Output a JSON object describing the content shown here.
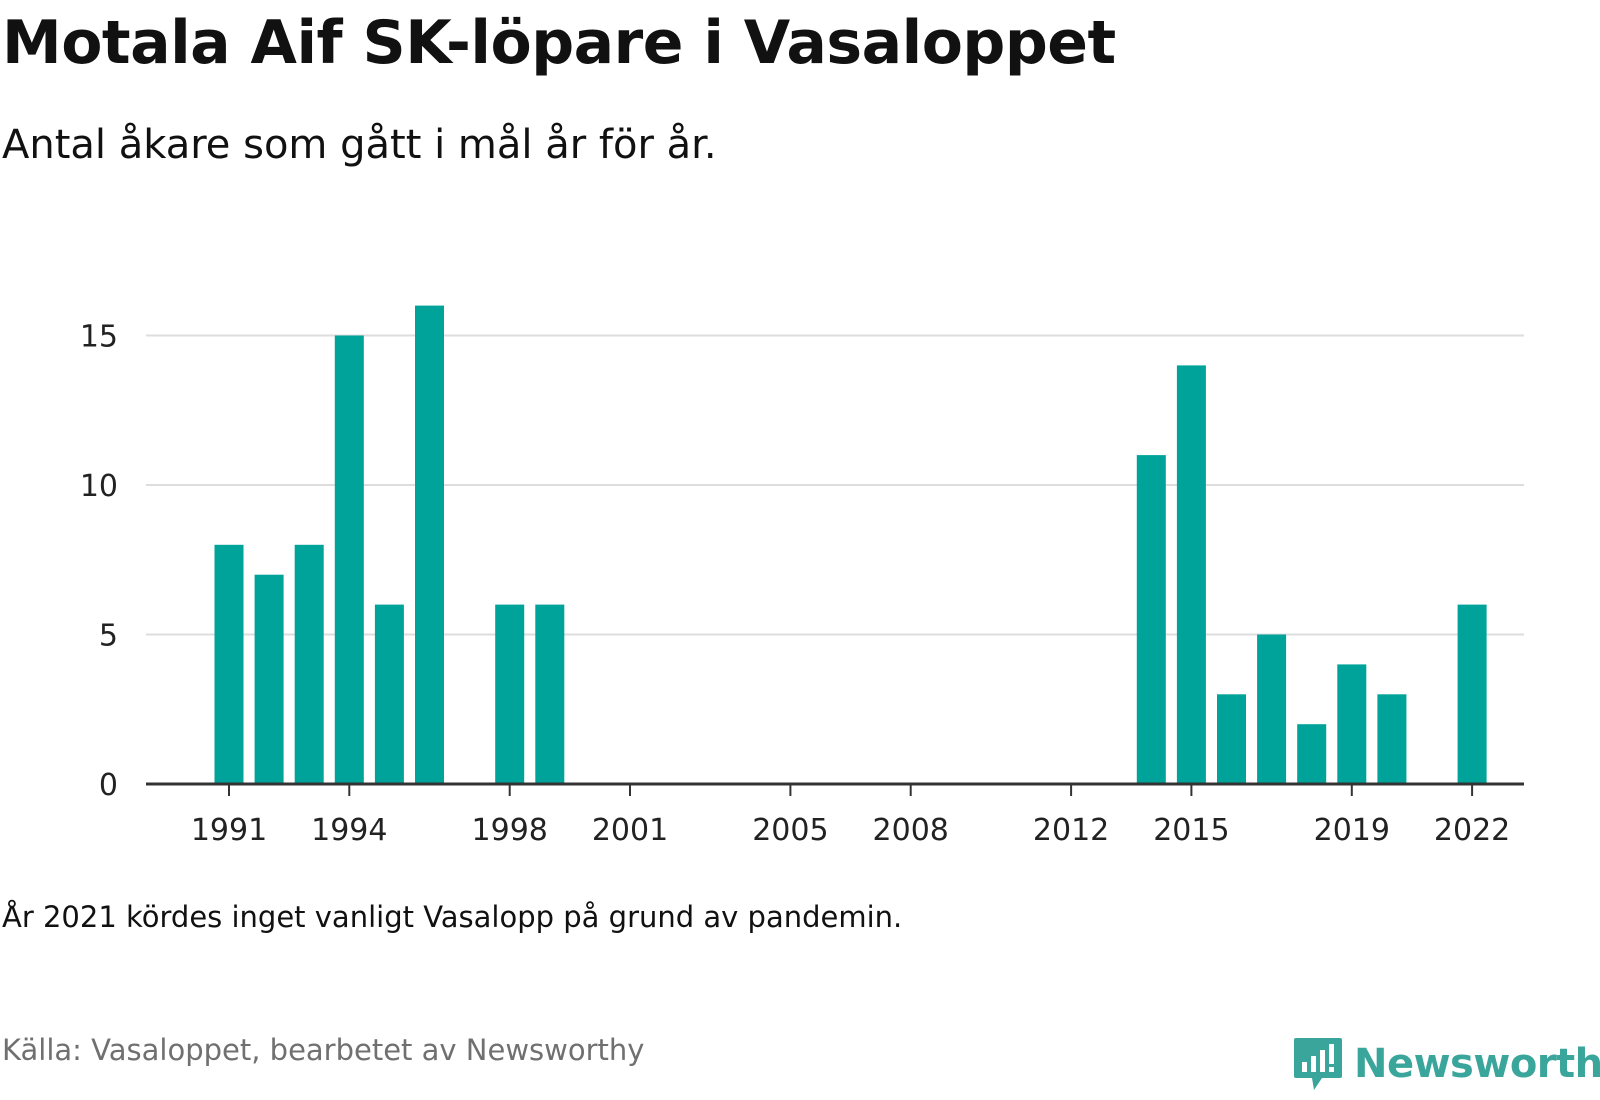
{
  "title": "Motala Aif SK-löpare i Vasaloppet",
  "subtitle": "Antal åkare som gått i mål år för år.",
  "note": "År 2021 kördes inget vanligt Vasalopp på grund av pandemin.",
  "source": "Källa: Vasaloppet, bearbetet av Newsworthy",
  "logo": {
    "text": "Newsworthy",
    "icon": "newsworthy-logo-icon",
    "color": "#3aa69b"
  },
  "chart_data": {
    "type": "bar",
    "x": [
      1991,
      1992,
      1993,
      1994,
      1995,
      1996,
      1997,
      1998,
      1999,
      2000,
      2001,
      2002,
      2003,
      2004,
      2005,
      2006,
      2007,
      2008,
      2009,
      2010,
      2011,
      2012,
      2013,
      2014,
      2015,
      2016,
      2017,
      2018,
      2019,
      2020,
      2021,
      2022
    ],
    "values": [
      8,
      7,
      8,
      15,
      6,
      16,
      0,
      6,
      6,
      0,
      0,
      0,
      0,
      0,
      0,
      0,
      0,
      0,
      0,
      0,
      0,
      0,
      0,
      11,
      14,
      3,
      5,
      2,
      4,
      3,
      0,
      6
    ],
    "x_ticks": [
      1991,
      1994,
      1998,
      2001,
      2005,
      2008,
      2012,
      2015,
      2019,
      2022
    ],
    "y_ticks": [
      0,
      5,
      10,
      15
    ],
    "ylim": [
      0,
      16
    ],
    "xlabel": "",
    "ylabel": "",
    "grid": true,
    "bar_color": "#00a39a",
    "grid_color": "#dddddd",
    "axis_color": "#333333"
  }
}
